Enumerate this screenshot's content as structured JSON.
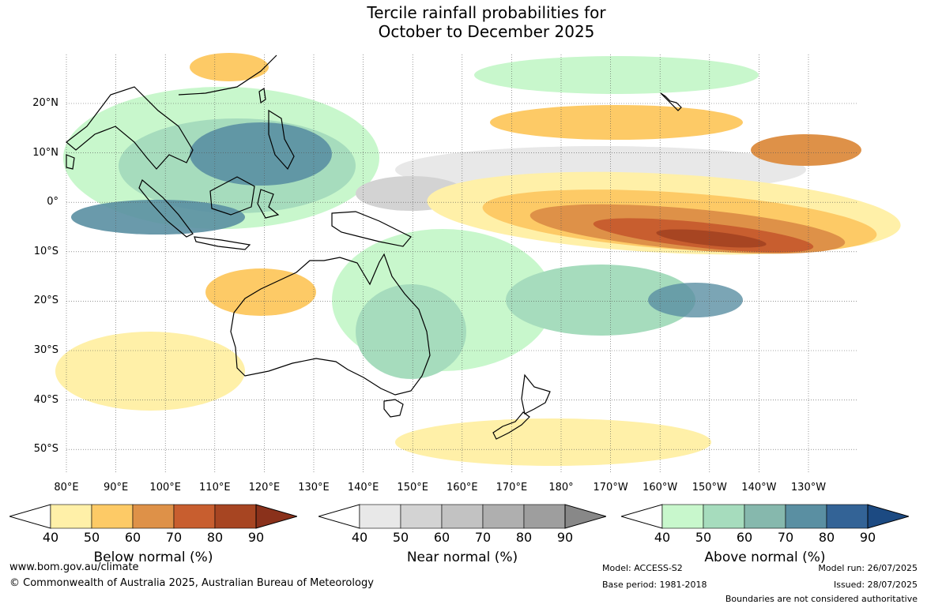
{
  "title": {
    "line1": "Tercile rainfall probabilities for",
    "line2": "October to December 2025"
  },
  "map": {
    "lat_labels": [
      "20°N",
      "10°N",
      "0°",
      "10°S",
      "20°S",
      "30°S",
      "40°S",
      "50°S"
    ],
    "lon_labels": [
      "80°E",
      "90°E",
      "100°E",
      "110°E",
      "120°E",
      "130°E",
      "140°E",
      "150°E",
      "160°E",
      "170°E",
      "180°",
      "170°W",
      "160°W",
      "150°W",
      "140°W",
      "130°W"
    ]
  },
  "legends": [
    {
      "name": "below",
      "title": "Below normal (%)",
      "ticks": [
        "40",
        "50",
        "60",
        "70",
        "80",
        "90"
      ],
      "colors": [
        "#fff0a8",
        "#fdca66",
        "#de9148",
        "#c85e2f",
        "#a74522",
        "#8a311b"
      ]
    },
    {
      "name": "near",
      "title": "Near normal (%)",
      "ticks": [
        "40",
        "50",
        "60",
        "70",
        "80",
        "90"
      ],
      "colors": [
        "#e8e8e8",
        "#d3d3d3",
        "#c2c2c2",
        "#afafaf",
        "#9e9e9e",
        "#888888"
      ]
    },
    {
      "name": "above",
      "title": "Above normal (%)",
      "ticks": [
        "40",
        "50",
        "60",
        "70",
        "80",
        "90"
      ],
      "colors": [
        "#c8f7cc",
        "#a6dcbd",
        "#86b8ad",
        "#5a8fa2",
        "#336396",
        "#1c4a82"
      ]
    }
  ],
  "footer": {
    "website": "www.bom.gov.au/climate",
    "copyright": "© Commonwealth of Australia 2025, Australian Bureau of Meteorology",
    "model": "Model: ACCESS-S2",
    "base_period": "Base period: 1981-2018",
    "model_run": "Model run: 26/07/2025",
    "issued": "Issued: 28/07/2025",
    "disclaimer": "Boundaries are not considered authoritative"
  }
}
